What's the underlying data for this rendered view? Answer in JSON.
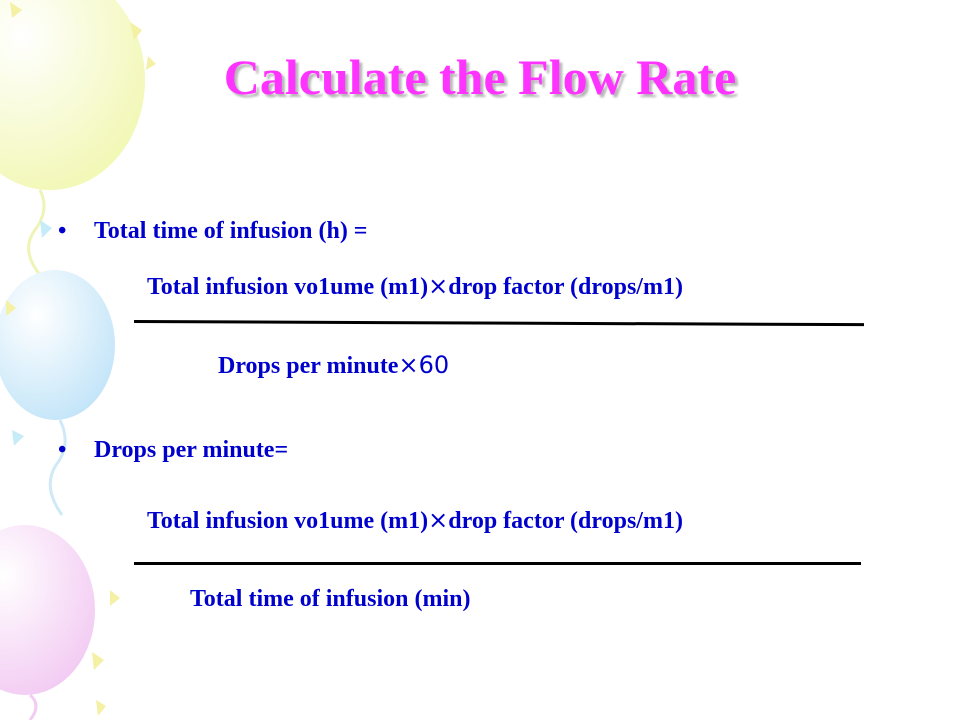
{
  "slide": {
    "title": "Calculate the Flow Rate",
    "accent_color": "#ff33ff",
    "text_color": "#0000cc"
  },
  "formula1": {
    "bullet": "•",
    "label": "Total time of infusion (h) =",
    "numerator_a": "Total infusion vo1ume (m1)",
    "times": "×",
    "numerator_b": "drop factor (drops/m1)",
    "denominator_a": "Drops per minute",
    "denominator_times": "×",
    "denominator_b": "60"
  },
  "formula2": {
    "bullet": "•",
    "label": "Drops per minute=",
    "numerator_a": "Total infusion vo1ume (m1)",
    "times": "×",
    "numerator_b": "drop factor (drops/m1)",
    "denominator": "Total time of infusion (min)"
  }
}
